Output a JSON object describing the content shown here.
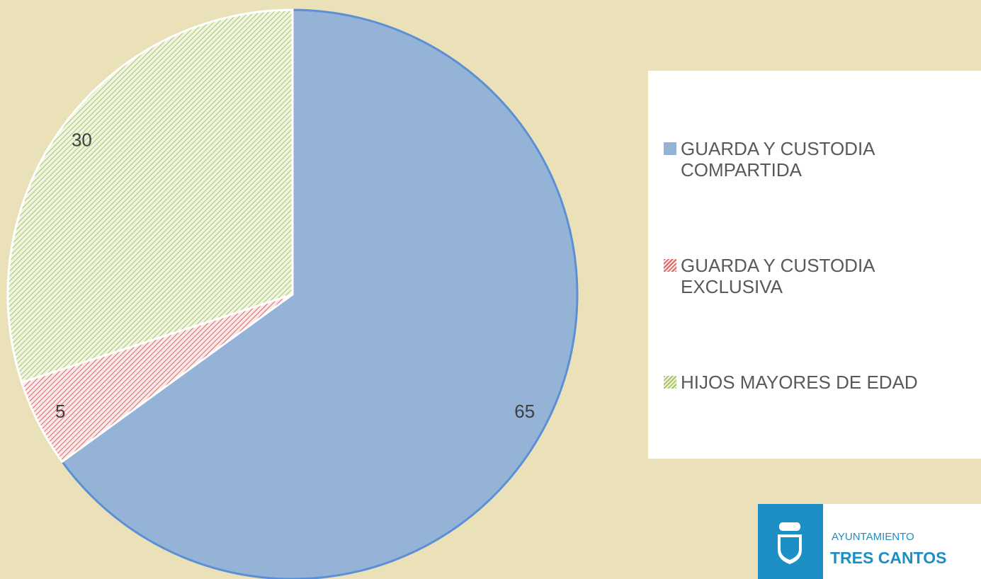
{
  "chart_data": {
    "type": "pie",
    "categories": [
      "GUARDA Y CUSTODIA COMPARTIDA",
      "GUARDA Y CUSTODIA EXCLUSIVA",
      "HIJOS MAYORES DE EDAD"
    ],
    "values": [
      65,
      5,
      30
    ],
    "colors": [
      "#95b3d7",
      "#e06666",
      "#a9c46a"
    ],
    "legend": "right"
  },
  "logo": {
    "line1": "AYUNTAMIENTO",
    "line2": "TRES CANTOS"
  }
}
